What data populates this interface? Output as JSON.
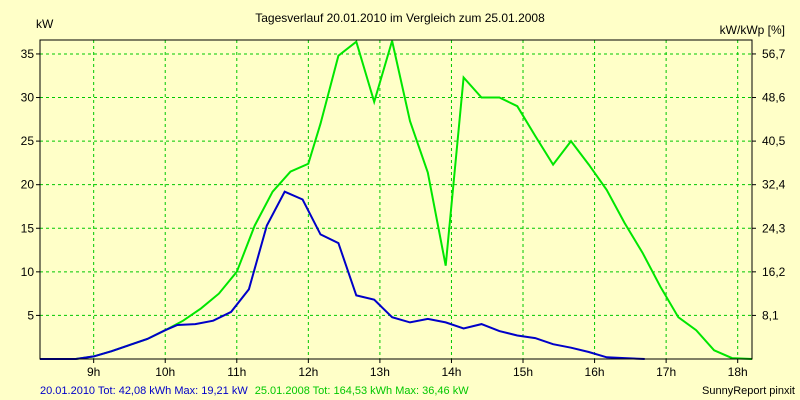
{
  "chart_data": {
    "type": "line",
    "title": "Tagesverlauf 20.01.2010 im Vergleich zum 25.01.2008",
    "ylabel": "kW",
    "ylabel_right": "kW/kWp [%]",
    "xlim": [
      8.25,
      18.2
    ],
    "ylim": [
      0,
      36.6
    ],
    "grid": true,
    "y_ticks": [
      5,
      10,
      15,
      20,
      25,
      30,
      35
    ],
    "y_tick_labels": [
      "5",
      "10",
      "15",
      "20",
      "25",
      "30",
      "35"
    ],
    "y_right_ticks": [
      5,
      10,
      15,
      20,
      25,
      30,
      35
    ],
    "y_right_tick_labels": [
      "8,1",
      "16,2",
      "24,3",
      "32,4",
      "40,5",
      "48,6",
      "56,7"
    ],
    "x_ticks": [
      9,
      10,
      11,
      12,
      13,
      14,
      15,
      16,
      17,
      18
    ],
    "x_tick_labels": [
      "9h",
      "10h",
      "11h",
      "12h",
      "13h",
      "14h",
      "15h",
      "16h",
      "17h",
      "18h"
    ],
    "series": [
      {
        "name": "20.01.2010",
        "color": "#0000c8",
        "x": [
          8.25,
          8.75,
          9.0,
          9.25,
          9.5,
          9.75,
          10.0,
          10.17,
          10.42,
          10.67,
          10.92,
          11.17,
          11.42,
          11.67,
          11.92,
          12.17,
          12.42,
          12.67,
          12.92,
          13.17,
          13.42,
          13.67,
          13.92,
          14.17,
          14.42,
          14.67,
          14.92,
          15.17,
          15.42,
          15.67,
          15.92,
          16.17,
          16.42,
          16.7
        ],
        "y": [
          0,
          0,
          0.3,
          0.9,
          1.6,
          2.3,
          3.3,
          3.9,
          4.0,
          4.4,
          5.4,
          8.0,
          15.3,
          19.2,
          18.3,
          14.3,
          13.3,
          7.3,
          6.8,
          4.8,
          4.2,
          4.6,
          4.2,
          3.5,
          4.0,
          3.2,
          2.7,
          2.4,
          1.7,
          1.3,
          0.8,
          0.2,
          0.1,
          0
        ]
      },
      {
        "name": "25.01.2008",
        "color": "#00e600",
        "x": [
          8.25,
          8.75,
          9.0,
          9.25,
          9.5,
          9.75,
          10.0,
          10.25,
          10.5,
          10.75,
          11.0,
          11.25,
          11.5,
          11.75,
          12.0,
          12.17,
          12.42,
          12.67,
          12.92,
          13.17,
          13.42,
          13.67,
          13.92,
          14.17,
          14.42,
          14.67,
          14.92,
          15.17,
          15.42,
          15.67,
          15.92,
          16.17,
          16.42,
          16.67,
          16.92,
          17.17,
          17.42,
          17.67,
          17.92,
          18.2
        ],
        "y": [
          0,
          0,
          0.3,
          0.9,
          1.6,
          2.3,
          3.3,
          4.4,
          5.8,
          7.5,
          10.0,
          15.3,
          19.2,
          21.5,
          22.4,
          27.0,
          34.8,
          36.4,
          29.5,
          36.5,
          27.3,
          21.4,
          10.7,
          32.3,
          30.0,
          30.0,
          29.0,
          25.6,
          22.3,
          25.0,
          22.3,
          19.4,
          15.6,
          12.2,
          8.3,
          4.8,
          3.3,
          1.0,
          0.1,
          0
        ]
      }
    ],
    "footer_left": [
      {
        "text": "20.01.2010 Tot: 42,08 kWh Max: 19,21 kW",
        "color": "#0000c8"
      },
      {
        "text": "25.01.2008 Tot: 164,53 kWh Max: 36,46 kW",
        "color": "#00c800"
      }
    ],
    "footer_right": "SunnyReport pinxit"
  }
}
